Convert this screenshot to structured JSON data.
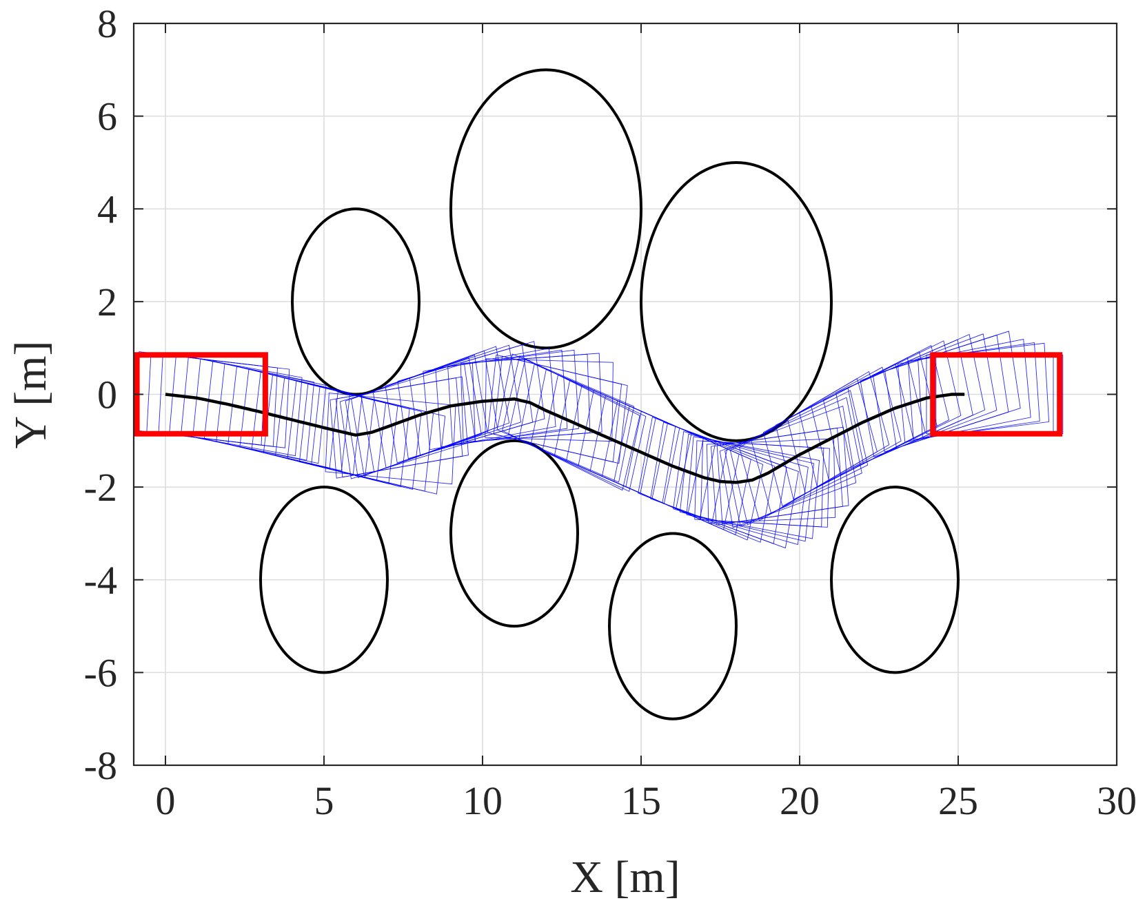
{
  "chart_data": {
    "type": "line",
    "xlabel": "X [m]",
    "ylabel": "Y [m]",
    "xlim": [
      -1,
      30
    ],
    "ylim": [
      -8,
      8
    ],
    "xticks": [
      "0",
      "5",
      "10",
      "15",
      "20",
      "25",
      "30"
    ],
    "yticks": [
      "8",
      "6",
      "4",
      "2",
      "0",
      "-2",
      "-4",
      "-6",
      "-8"
    ],
    "grid": true,
    "obstacles": [
      {
        "cx": 6,
        "cy": 2,
        "rx": 2,
        "ry": 2
      },
      {
        "cx": 12,
        "cy": 4,
        "rx": 3,
        "ry": 3
      },
      {
        "cx": 18,
        "cy": 2,
        "rx": 3,
        "ry": 3
      },
      {
        "cx": 5,
        "cy": -4,
        "rx": 2,
        "ry": 2
      },
      {
        "cx": 11,
        "cy": -3,
        "rx": 2,
        "ry": 2
      },
      {
        "cx": 16,
        "cy": -5,
        "rx": 2,
        "ry": 2
      },
      {
        "cx": 23,
        "cy": -4,
        "rx": 2,
        "ry": 2
      }
    ],
    "path": {
      "x": [
        0,
        1,
        2,
        3,
        4,
        5,
        6,
        6.5,
        7,
        8,
        9,
        10,
        11,
        11.5,
        12,
        13,
        14,
        15,
        16,
        17,
        17.5,
        18,
        18.5,
        19,
        20,
        21,
        22,
        23,
        24,
        24.8,
        25.2
      ],
      "y": [
        0,
        -0.08,
        -0.22,
        -0.38,
        -0.55,
        -0.72,
        -0.88,
        -0.82,
        -0.7,
        -0.45,
        -0.25,
        -0.15,
        -0.1,
        -0.18,
        -0.35,
        -0.65,
        -0.95,
        -1.25,
        -1.55,
        -1.8,
        -1.88,
        -1.9,
        -1.85,
        -1.7,
        -1.3,
        -0.95,
        -0.6,
        -0.3,
        -0.08,
        0,
        0
      ]
    },
    "vehicle": {
      "length": 4.0,
      "width": 1.7,
      "rear_offset": 0.9
    },
    "footprint_color": "#0000ff",
    "path_color": "#000000",
    "obstacle_color": "#000000",
    "start_end_color": "#ff0000",
    "start_box": {
      "x0": -0.9,
      "x1": 3.15,
      "y0": -0.85,
      "y1": 0.85
    },
    "goal_box": {
      "x0": 24.2,
      "x1": 28.2,
      "y0": -0.85,
      "y1": 0.85
    }
  }
}
